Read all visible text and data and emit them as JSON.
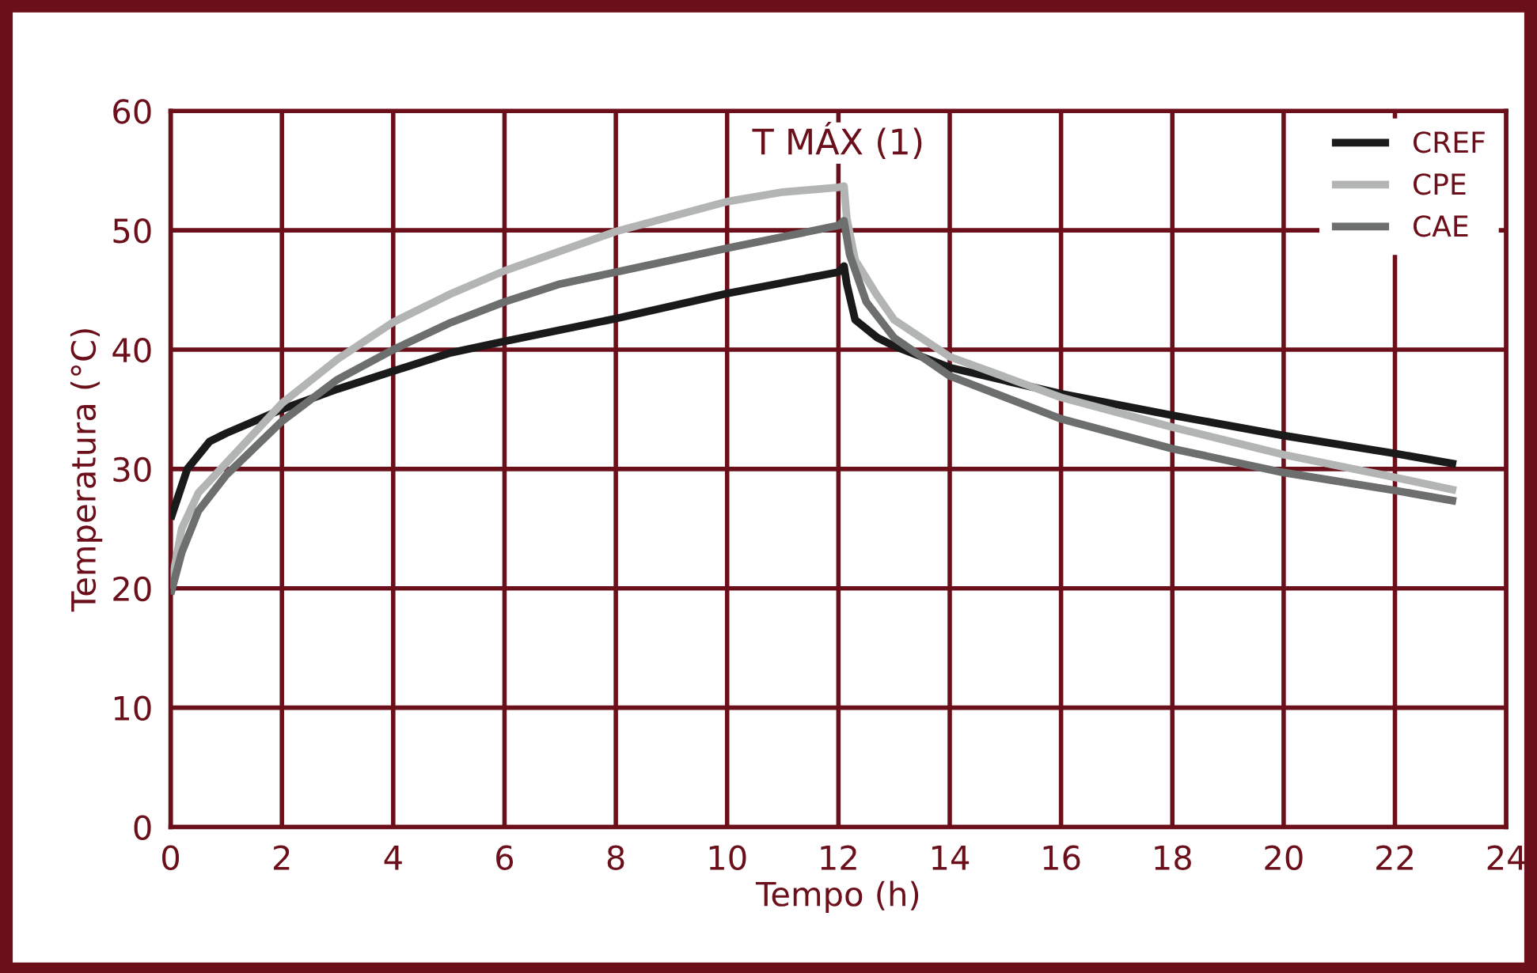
{
  "chart_data": {
    "type": "line",
    "xlabel": "Tempo (h)",
    "ylabel": "Temperatura (°C)",
    "xlim": [
      0,
      24
    ],
    "xticks": [
      0,
      2,
      4,
      6,
      8,
      10,
      12,
      14,
      16,
      18,
      20,
      22,
      24
    ],
    "ylim": [
      0,
      60
    ],
    "yticks": [
      0,
      10,
      20,
      30,
      40,
      50,
      60
    ],
    "grid": true,
    "legend": "top right",
    "line_style": "solid",
    "annotations": [
      "T MÁX (1)"
    ],
    "series": [
      {
        "name": "CREF",
        "color": "#1a1a1a",
        "x": [
          0,
          0.3,
          0.7,
          1,
          2,
          3,
          4,
          5,
          6,
          8,
          10,
          12,
          12.1,
          12.15,
          12.3,
          12.7,
          13,
          14,
          16,
          18,
          20,
          22,
          23.1
        ],
        "values": [
          25.8,
          30,
          32.3,
          33,
          35,
          36.7,
          38.2,
          39.7,
          40.7,
          42.6,
          44.7,
          46.5,
          47,
          45.5,
          42.5,
          41,
          40.3,
          38.5,
          36.3,
          34.5,
          32.8,
          31.3,
          30.4
        ]
      },
      {
        "name": "CPE",
        "color": "#b3b5b5",
        "x": [
          0,
          0.2,
          0.5,
          1,
          2,
          3,
          4,
          5,
          6,
          8,
          10,
          11,
          12,
          12.1,
          12.15,
          12.3,
          12.7,
          13,
          14,
          16,
          18,
          20,
          22,
          23.1
        ],
        "values": [
          20,
          25,
          28,
          30.5,
          35.5,
          39.2,
          42.3,
          44.6,
          46.6,
          49.9,
          52.4,
          53.2,
          53.6,
          53.7,
          51,
          47.5,
          44.5,
          42.5,
          39.4,
          36,
          33.5,
          31.2,
          29.3,
          28.2
        ]
      },
      {
        "name": "CAE",
        "color": "#6d6e6e",
        "x": [
          0,
          0.2,
          0.5,
          1,
          2,
          3,
          4,
          5,
          6,
          7,
          8,
          10,
          12,
          12.1,
          12.2,
          12.5,
          13,
          14,
          16,
          18,
          20,
          22,
          23.1
        ],
        "values": [
          19.5,
          23,
          26.5,
          29.5,
          34,
          37.5,
          40,
          42.2,
          44,
          45.5,
          46.5,
          48.5,
          50.4,
          50.8,
          48,
          44,
          41,
          37.8,
          34.2,
          31.7,
          29.7,
          28.2,
          27.3
        ]
      }
    ]
  }
}
